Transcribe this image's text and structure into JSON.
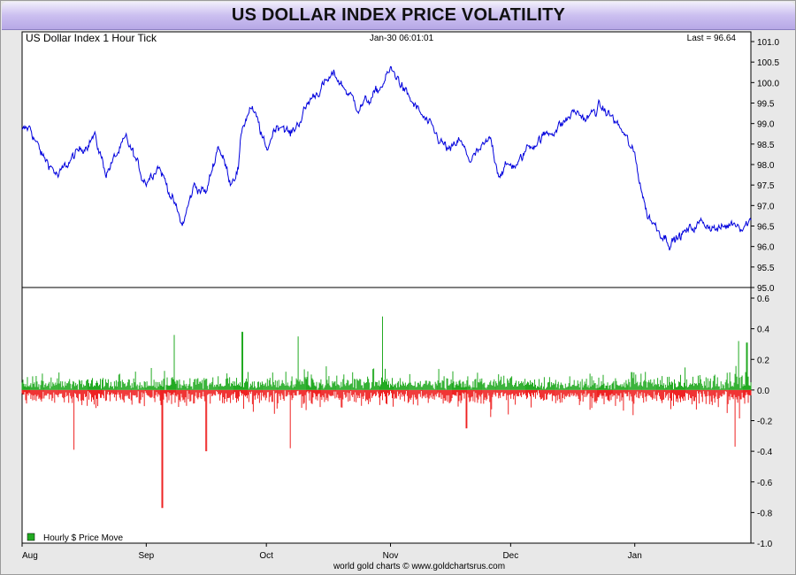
{
  "title": "US DOLLAR INDEX PRICE VOLATILITY",
  "chart_data": [
    {
      "type": "line",
      "title": "US Dollar Index 1 Hour Tick",
      "timestamp": "Jan-30  06:01:01",
      "last_label": "Last = 96.64",
      "ylim": [
        95.0,
        101.0
      ],
      "yticks": [
        "101.0",
        "100.5",
        "100.0",
        "99.5",
        "99.0",
        "98.5",
        "98.0",
        "97.5",
        "97.0",
        "96.5",
        "96.0",
        "95.5",
        "95.0"
      ],
      "xticks": [
        "Aug",
        "Sep",
        "Oct",
        "Nov",
        "Dec",
        "Jan"
      ],
      "x_range": [
        "Aug 1",
        "Jan 30"
      ],
      "grid": false,
      "line_color": "#0000dd",
      "series": [
        {
          "x": [
            "Aug 1",
            "Aug 3",
            "Aug 6",
            "Aug 8",
            "Aug 10",
            "Aug 13",
            "Aug 16",
            "Aug 19",
            "Aug 22",
            "Aug 25",
            "Aug 27",
            "Aug 29",
            "Aug 31",
            "Sep 1",
            "Sep 4",
            "Sep 7",
            "Sep 10",
            "Sep 13",
            "Sep 16",
            "Sep 19",
            "Sep 22",
            "Sep 24",
            "Sep 25",
            "Sep 27",
            "Sep 29",
            "Oct 1",
            "Oct 3",
            "Oct 5",
            "Oct 7",
            "Oct 10",
            "Oct 12",
            "Oct 15",
            "Oct 18",
            "Oct 21",
            "Oct 24",
            "Oct 27",
            "Oct 29",
            "Nov 1",
            "Nov 3",
            "Nov 5",
            "Nov 8",
            "Nov 11",
            "Nov 14",
            "Nov 16",
            "Nov 18",
            "Nov 21",
            "Nov 24",
            "Nov 26",
            "Nov 28",
            "Dec 1",
            "Dec 3",
            "Dec 5",
            "Dec 8",
            "Dec 11",
            "Dec 14",
            "Dec 17",
            "Dec 20",
            "Dec 23",
            "Dec 26",
            "Dec 29",
            "Jan 1",
            "Jan 4",
            "Jan 7",
            "Jan 10",
            "Jan 13",
            "Jan 16",
            "Jan 18",
            "Jan 20",
            "Jan 22",
            "Jan 24",
            "Jan 26",
            "Jan 28",
            "Jan 30"
          ],
          "y": [
            98.8,
            98.9,
            98.2,
            98.0,
            97.7,
            98.1,
            98.4,
            98.7,
            97.8,
            98.3,
            98.6,
            98.2,
            97.7,
            97.6,
            98.0,
            97.3,
            96.5,
            97.5,
            97.3,
            98.5,
            97.6,
            97.9,
            98.9,
            99.4,
            99.0,
            98.3,
            98.9,
            99.0,
            98.7,
            99.2,
            99.6,
            99.9,
            100.2,
            99.8,
            99.4,
            99.6,
            99.8,
            100.3,
            100.1,
            99.7,
            99.3,
            98.9,
            98.5,
            98.3,
            98.6,
            98.1,
            98.4,
            98.6,
            97.8,
            98.0,
            98.0,
            98.4,
            98.6,
            98.8,
            99.0,
            99.3,
            99.1,
            99.4,
            99.2,
            98.8,
            98.2,
            96.8,
            96.4,
            96.1,
            96.3,
            96.5,
            96.6,
            96.5,
            96.4,
            96.5,
            96.6,
            96.5,
            96.64
          ]
        }
      ]
    },
    {
      "type": "bar",
      "title": "",
      "legend": [
        "Hourly $ Price Move"
      ],
      "legend_position": "bottom-left",
      "ylim": [
        -1.0,
        0.6
      ],
      "yticks": [
        "0.6",
        "0.4",
        "0.2",
        "0.0",
        "-0.2",
        "-0.4",
        "-0.6",
        "-0.8",
        "-1.0"
      ],
      "positive_color": "#22aa22",
      "negative_color": "#ee2222",
      "notable_spikes": [
        {
          "x": "Sep 5",
          "value": -0.77
        },
        {
          "x": "Aug 14",
          "value": -0.39
        },
        {
          "x": "Sep 8",
          "value": 0.36
        },
        {
          "x": "Sep 16",
          "value": -0.4
        },
        {
          "x": "Sep 25",
          "value": 0.38
        },
        {
          "x": "Oct 7",
          "value": -0.38
        },
        {
          "x": "Oct 9",
          "value": 0.35
        },
        {
          "x": "Oct 30",
          "value": 0.48
        },
        {
          "x": "Nov 20",
          "value": -0.25
        },
        {
          "x": "Jan 26",
          "value": -0.37
        },
        {
          "x": "Jan 27",
          "value": 0.32
        },
        {
          "x": "Jan 29",
          "value": 0.31
        }
      ]
    }
  ],
  "footer": "world gold charts © www.goldchartsrus.com"
}
